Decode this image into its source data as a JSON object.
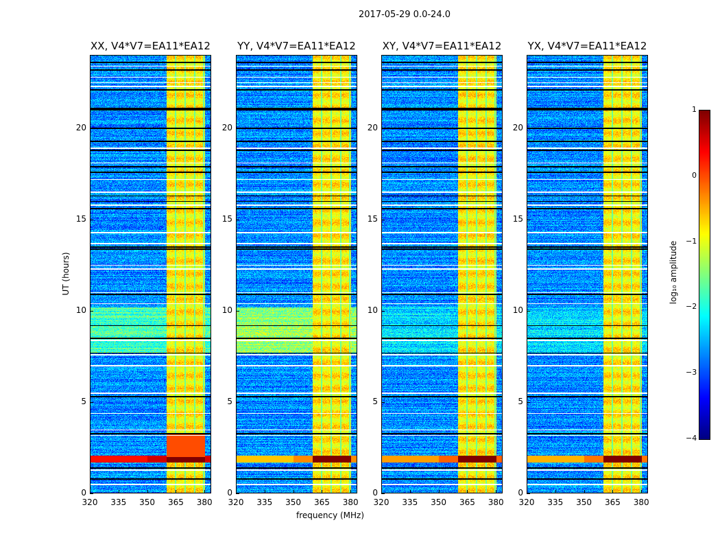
{
  "title": "2017-05-29 0.0-24.0",
  "chart_data": {
    "type": "heatmap",
    "xlabel": "frequency (MHz)",
    "ylabel": "UT (hours)",
    "xlim": [
      320,
      383.5
    ],
    "ylim": [
      0,
      24
    ],
    "xticks": [
      "320",
      "335",
      "350",
      "365",
      "380"
    ],
    "xtick_values": [
      320,
      335,
      350,
      365,
      380
    ],
    "yticks": [
      "0",
      "5",
      "10",
      "15",
      "20"
    ],
    "ytick_values": [
      0,
      5,
      10,
      15,
      20
    ],
    "panels": [
      {
        "title": "XX, V4*V7=EA11*EA12",
        "event_level": 0.3,
        "cyan_block": 0.9
      },
      {
        "title": "YY, V4*V7=EA11*EA12",
        "event_level": -0.6,
        "cyan_block": 1.3
      },
      {
        "title": "XY, V4*V7=EA11*EA12",
        "event_level": -0.4,
        "cyan_block": 0.4
      },
      {
        "title": "YX, V4*V7=EA11*EA12",
        "event_level": -0.5,
        "cyan_block": 0.4
      }
    ],
    "background_log10_amplitude": -2.7,
    "rfi_band_mhz": [
      360,
      380
    ],
    "rfi_band_log10_amplitude": -0.8,
    "rfi_subband_edges_mhz": [
      364.7,
      369.6,
      374.6,
      379.4
    ],
    "broadband_event_hours": [
      1.7,
      2.1
    ],
    "elevated_block_hours": [
      7.7,
      10.2
    ],
    "flagged_white_hours": [
      0.5,
      1.3,
      3.2,
      3.5,
      4.4,
      5.5,
      7.0,
      7.6,
      8.4,
      10.4,
      11.0,
      12.3,
      12.5,
      13.7,
      14.3,
      15.8,
      16.5,
      17.2,
      18.1,
      18.9,
      22.3,
      22.5,
      22.8,
      23.4
    ],
    "flagged_black_hours": [
      0.8,
      1.4,
      3.3,
      5.3,
      7.7,
      8.5,
      9.2,
      10.9,
      13.4,
      13.5,
      15.6,
      16.0,
      16.3,
      17.6,
      17.9,
      18.8,
      19.3,
      20.0,
      21.0,
      21.1,
      22.1,
      23.2,
      23.6
    ],
    "colorbar": {
      "label": "log₁₀ amplitude",
      "ticks": [
        "1",
        "0",
        "−1",
        "−2",
        "−3",
        "−4"
      ],
      "tick_values": [
        1,
        0,
        -1,
        -2,
        -3,
        -4
      ],
      "range": [
        -4,
        1
      ],
      "colormap": "jet"
    }
  }
}
